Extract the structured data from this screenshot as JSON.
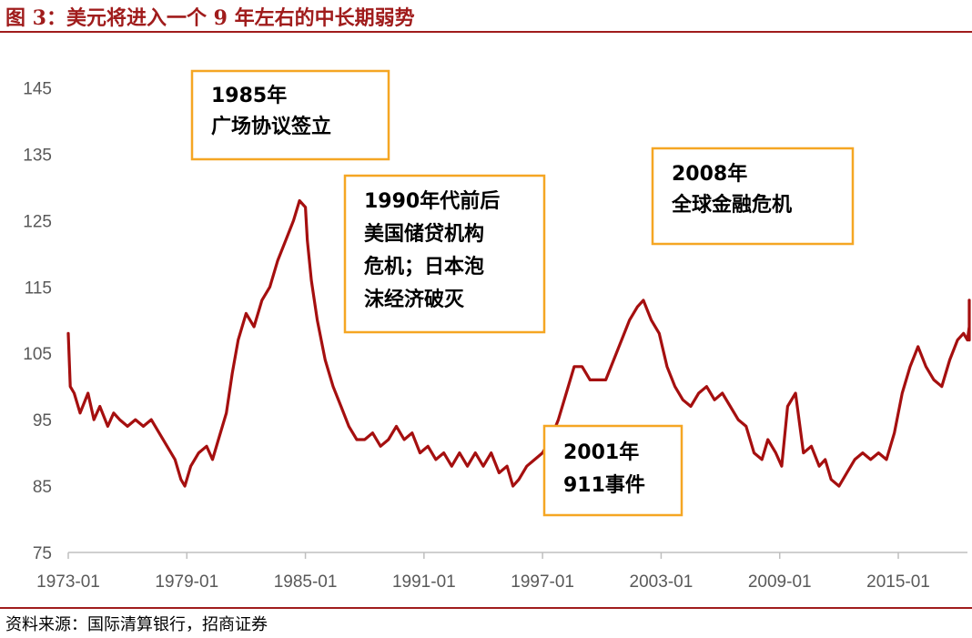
{
  "figure": {
    "title": "图 3：美元将进入一个 9 年左右的中长期弱势",
    "source": "资料来源：国际清算银行，招商证券"
  },
  "colors": {
    "series": "#a50f0f",
    "accent": "#a01c1c",
    "annotation_border": "#f5a623",
    "axis": "#bfbfbf"
  },
  "chart_data": {
    "type": "line",
    "title": "",
    "xlabel": "",
    "ylabel": "",
    "ylim": [
      75,
      150
    ],
    "xlim": [
      1973.0,
      2018.5
    ],
    "yticks": [
      75,
      85,
      95,
      105,
      115,
      125,
      135,
      145
    ],
    "xticks": [
      {
        "label": "1973-01",
        "value": 1973.0
      },
      {
        "label": "1979-01",
        "value": 1979.0
      },
      {
        "label": "1985-01",
        "value": 1985.0
      },
      {
        "label": "1991-01",
        "value": 1991.0
      },
      {
        "label": "1997-01",
        "value": 1997.0
      },
      {
        "label": "2003-01",
        "value": 2003.0
      },
      {
        "label": "2009-01",
        "value": 2009.0
      },
      {
        "label": "2015-01",
        "value": 2015.0
      }
    ],
    "grid": false,
    "legend": "none",
    "series": [
      {
        "x": [
          1973.0,
          1973.1,
          1973.3,
          1973.6,
          1974.0,
          1974.3,
          1974.6,
          1975.0,
          1975.3,
          1975.6,
          1976.0,
          1976.4,
          1976.8,
          1977.2,
          1977.6,
          1978.0,
          1978.4,
          1978.7,
          1978.9,
          1979.2,
          1979.6,
          1980.0,
          1980.3,
          1980.6,
          1981.0,
          1981.3,
          1981.6,
          1982.0,
          1982.4,
          1982.8,
          1983.2,
          1983.6,
          1984.0,
          1984.4,
          1984.7,
          1985.0,
          1985.1,
          1985.3,
          1985.6,
          1986.0,
          1986.4,
          1986.8,
          1987.2,
          1987.6,
          1988.0,
          1988.4,
          1988.8,
          1989.2,
          1989.6,
          1990.0,
          1990.4,
          1990.8,
          1991.2,
          1991.6,
          1992.0,
          1992.4,
          1992.8,
          1993.2,
          1993.6,
          1994.0,
          1994.4,
          1994.8,
          1995.2,
          1995.5,
          1995.8,
          1996.2,
          1996.6,
          1997.0,
          1997.4,
          1997.8,
          1998.2,
          1998.6,
          1999.0,
          1999.4,
          1999.8,
          2000.2,
          2000.6,
          2001.0,
          2001.4,
          2001.8,
          2002.1,
          2002.5,
          2002.9,
          2003.3,
          2003.7,
          2004.1,
          2004.5,
          2004.9,
          2005.3,
          2005.7,
          2006.1,
          2006.5,
          2006.9,
          2007.3,
          2007.7,
          2008.1,
          2008.4,
          2008.8,
          2009.1,
          2009.4,
          2009.8,
          2010.2,
          2010.6,
          2011.0,
          2011.3,
          2011.6,
          2012.0,
          2012.4,
          2012.8,
          2013.2,
          2013.6,
          2014.0,
          2014.4,
          2014.8,
          2015.2,
          2015.6,
          2016.0,
          2016.4,
          2016.8,
          2017.2,
          2017.6,
          2018.0,
          2018.3,
          2018.5,
          2018.9,
          2019.2,
          2019.6,
          2020.0,
          2020.3,
          2020.6,
          2020.9
        ],
        "values": [
          108,
          100,
          99,
          96,
          99,
          95,
          97,
          94,
          96,
          95,
          94,
          95,
          94,
          95,
          93,
          91,
          89,
          86,
          85,
          88,
          90,
          91,
          89,
          92,
          96,
          102,
          107,
          111,
          109,
          113,
          115,
          119,
          122,
          125,
          128,
          127,
          122,
          116,
          110,
          104,
          100,
          97,
          94,
          92,
          92,
          93,
          91,
          92,
          94,
          92,
          93,
          90,
          91,
          89,
          90,
          88,
          90,
          88,
          90,
          88,
          90,
          87,
          88,
          85,
          86,
          88,
          89,
          90,
          92,
          95,
          99,
          103,
          103,
          101,
          101,
          101,
          104,
          107,
          110,
          112,
          113,
          110,
          108,
          103,
          100,
          98,
          97,
          99,
          100,
          98,
          99,
          97,
          95,
          94,
          90,
          89,
          92,
          90,
          88,
          97,
          99,
          90,
          91,
          88,
          89,
          86,
          85,
          87,
          89,
          90,
          89,
          90,
          89,
          93,
          99,
          103,
          106,
          103,
          101,
          100,
          104,
          107,
          108,
          107,
          109,
          107,
          108,
          110,
          113,
          111,
          108
        ]
      }
    ]
  },
  "annotations": [
    {
      "lines": [
        "1985年",
        "广场协议签立"
      ]
    },
    {
      "lines": [
        "1990年代前后",
        "美国储贷机构",
        "危机；日本泡",
        "沫经济破灭"
      ]
    },
    {
      "lines": [
        "2008年",
        "全球金融危机"
      ]
    },
    {
      "lines": [
        "2001年",
        "911事件"
      ]
    }
  ]
}
